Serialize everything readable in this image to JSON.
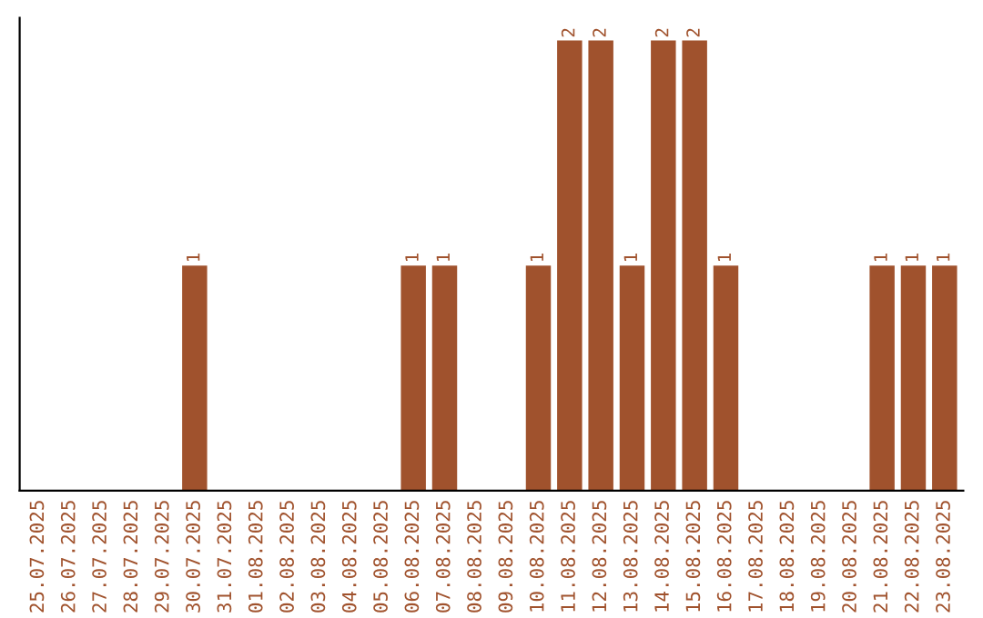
{
  "chart_data": {
    "type": "bar",
    "categories": [
      "25.07.2025",
      "26.07.2025",
      "27.07.2025",
      "28.07.2025",
      "29.07.2025",
      "30.07.2025",
      "31.07.2025",
      "01.08.2025",
      "02.08.2025",
      "03.08.2025",
      "04.08.2025",
      "05.08.2025",
      "06.08.2025",
      "07.08.2025",
      "08.08.2025",
      "09.08.2025",
      "10.08.2025",
      "11.08.2025",
      "12.08.2025",
      "13.08.2025",
      "14.08.2025",
      "15.08.2025",
      "16.08.2025",
      "17.08.2025",
      "18.08.2025",
      "19.08.2025",
      "20.08.2025",
      "21.08.2025",
      "22.08.2025",
      "23.08.2025"
    ],
    "values": [
      0,
      0,
      0,
      0,
      0,
      1,
      0,
      0,
      0,
      0,
      0,
      0,
      1,
      1,
      0,
      0,
      1,
      2,
      2,
      1,
      2,
      2,
      1,
      0,
      0,
      0,
      0,
      1,
      1,
      1
    ],
    "value_labels": [
      null,
      null,
      null,
      null,
      null,
      "1",
      null,
      null,
      null,
      null,
      null,
      null,
      "1",
      "1",
      null,
      null,
      "1",
      "2",
      "2",
      "1",
      "2",
      "2",
      "1",
      null,
      null,
      null,
      null,
      "1",
      "1",
      "1"
    ],
    "color": "#a0522d",
    "tick_labels": "x"
  }
}
